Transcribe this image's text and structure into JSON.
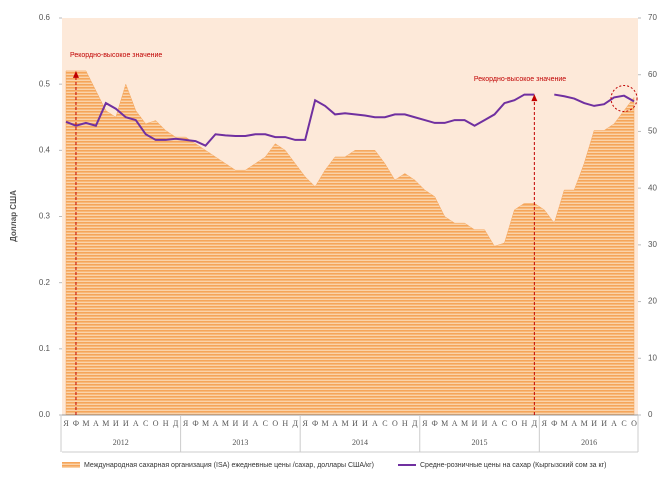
{
  "chart_data": {
    "type": "combo",
    "y_label": "Доллар США",
    "categories": [
      "Я",
      "Ф",
      "М",
      "А",
      "М",
      "И",
      "И",
      "А",
      "С",
      "О",
      "Н",
      "Д",
      "Я",
      "Ф",
      "М",
      "А",
      "М",
      "И",
      "И",
      "А",
      "С",
      "О",
      "Н",
      "Д",
      "Я",
      "Ф",
      "М",
      "А",
      "М",
      "И",
      "И",
      "А",
      "С",
      "О",
      "Н",
      "Д",
      "Я",
      "Ф",
      "М",
      "А",
      "М",
      "И",
      "И",
      "А",
      "С",
      "О",
      "Н",
      "Д",
      "Я",
      "Ф",
      "М",
      "А",
      "М",
      "И",
      "И",
      "А",
      "С",
      "О"
    ],
    "years": [
      "2012",
      "2013",
      "2014",
      "2015",
      "2016"
    ],
    "series": [
      {
        "name": "Международная сахарная организация (ISA) ежедневные цены /сахар, доллары США/кг)",
        "color": "#f5a55a",
        "kind": "area",
        "values": [
          0.52,
          0.52,
          0.52,
          0.49,
          0.46,
          0.45,
          0.5,
          0.46,
          0.44,
          0.445,
          0.43,
          0.42,
          0.42,
          0.41,
          0.4,
          0.39,
          0.38,
          0.37,
          0.37,
          0.38,
          0.39,
          0.41,
          0.4,
          0.38,
          0.36,
          0.345,
          0.37,
          0.39,
          0.39,
          0.4,
          0.4,
          0.4,
          0.38,
          0.355,
          0.365,
          0.355,
          0.34,
          0.33,
          0.3,
          0.29,
          0.29,
          0.28,
          0.28,
          0.255,
          0.26,
          0.31,
          0.32,
          0.32,
          0.31,
          0.29,
          0.34,
          0.34,
          0.38,
          0.43,
          0.43,
          0.44,
          0.46,
          0.48
        ]
      },
      {
        "name": "Средне-розничные цены на сахар (Кыргызский сом за кг)",
        "color": "#7030a0",
        "kind": "line",
        "axis": "y2",
        "values": [
          51.7,
          51,
          51.5,
          51,
          55,
          54,
          52.5,
          52,
          49.5,
          48.5,
          48.5,
          48.7,
          48.5,
          48.3,
          47.5,
          49.5,
          49.3,
          49.2,
          49.2,
          49.5,
          49.5,
          49,
          49,
          48.5,
          48.5,
          55.5,
          54.5,
          53,
          53.2,
          53,
          52.8,
          52.5,
          52.5,
          53,
          53,
          52.5,
          52,
          51.5,
          51.5,
          52,
          52,
          51,
          52,
          53,
          55,
          55.5,
          56.5,
          56.5,
          null,
          56.5,
          56.2,
          55.8,
          55,
          54.5,
          54.8,
          56,
          56.3,
          55.3
        ]
      }
    ],
    "annotations": [
      "Рекордно-высокое значение",
      "Рекордно-высокое значение"
    ],
    "ylim": [
      0,
      0.6
    ],
    "yticks": [
      {
        "value": 0,
        "label": "0.0"
      },
      0.1,
      0.2,
      0.3,
      0.4,
      0.5,
      0.6
    ],
    "y2lim": [
      0,
      70
    ],
    "y2ticks": [
      0,
      10,
      20,
      30,
      40,
      50,
      60,
      70
    ]
  }
}
